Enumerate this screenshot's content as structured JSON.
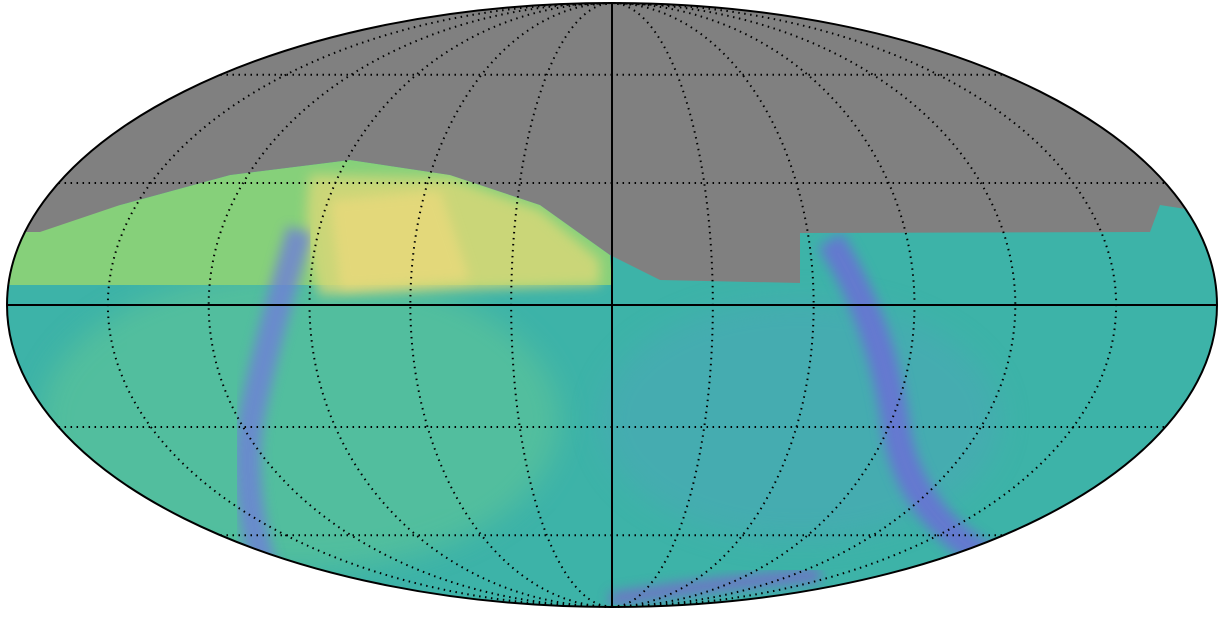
{
  "map": {
    "projection": "mollweide",
    "graticule": true
  }
}
